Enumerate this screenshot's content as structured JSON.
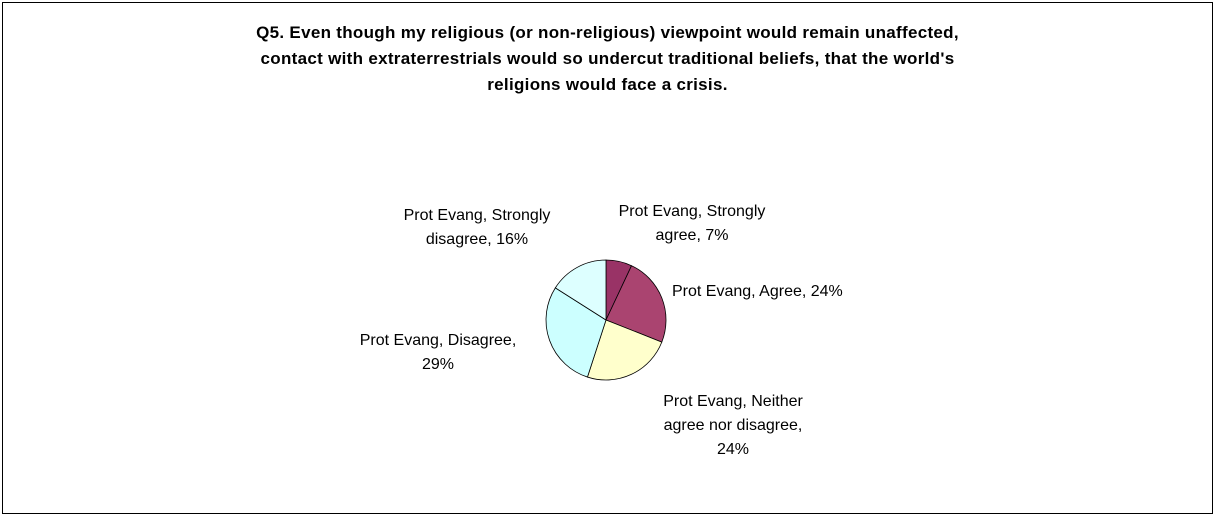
{
  "chart_data": {
    "type": "pie",
    "title": "Q5. Even though my religious (or non-religious) viewpoint would remain unaffected, contact with extraterrestrials would so undercut traditional beliefs, that the world's religions would face a crisis.",
    "title_lines": [
      "Q5. Even though my religious (or non-religious) viewpoint would remain unaffected,",
      "contact with extraterrestrials would so undercut traditional beliefs, that the world's",
      "religions would face a crisis."
    ],
    "slices": [
      {
        "name": "Prot Evang, Strongly agree",
        "value": 7,
        "color": "#993366",
        "label_lines": [
          "Prot Evang, Strongly",
          "agree, 7%"
        ]
      },
      {
        "name": "Prot Evang, Agree",
        "value": 24,
        "color": "#AA4470",
        "label_lines": [
          "Prot Evang, Agree, 24%"
        ]
      },
      {
        "name": "Prot Evang, Neither agree nor disagree",
        "value": 24,
        "color": "#FFFFCC",
        "label_lines": [
          "Prot Evang, Neither",
          "agree nor disagree,",
          "24%"
        ]
      },
      {
        "name": "Prot Evang, Disagree",
        "value": 29,
        "color": "#CCFFFF",
        "label_lines": [
          "Prot Evang, Disagree,",
          "29%"
        ]
      },
      {
        "name": "Prot Evang, Strongly disagree",
        "value": 16,
        "color": "#DDFFFF",
        "label_lines": [
          "Prot Evang, Strongly",
          "disagree, 16%"
        ]
      }
    ],
    "legend": "none",
    "start": "12 o'clock, clockwise"
  }
}
